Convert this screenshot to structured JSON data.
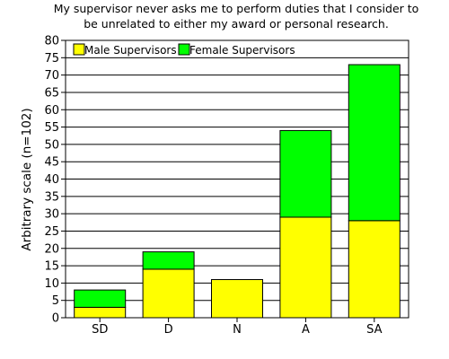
{
  "chart_data": {
    "type": "bar",
    "stacked": true,
    "title_lines": [
      "My supervisor never asks me to perform duties that I consider to",
      "be unrelated to either my award or personal research."
    ],
    "xlabel": "",
    "ylabel": "Arbitrary scale (n=102)",
    "categories": [
      "SD",
      "D",
      "N",
      "A",
      "SA"
    ],
    "series": [
      {
        "name": "Male Supervisors",
        "values": [
          3,
          14,
          11,
          29,
          28
        ],
        "color": "#ffff00"
      },
      {
        "name": "Female Supervisors",
        "values": [
          5,
          5,
          0,
          25,
          45
        ],
        "color": "#00ff00"
      }
    ],
    "ylim": [
      0,
      80
    ],
    "yticks": [
      0,
      5,
      10,
      15,
      20,
      25,
      30,
      35,
      40,
      45,
      50,
      55,
      60,
      65,
      70,
      75,
      80
    ],
    "grid": true,
    "legend_position": "top-left"
  }
}
